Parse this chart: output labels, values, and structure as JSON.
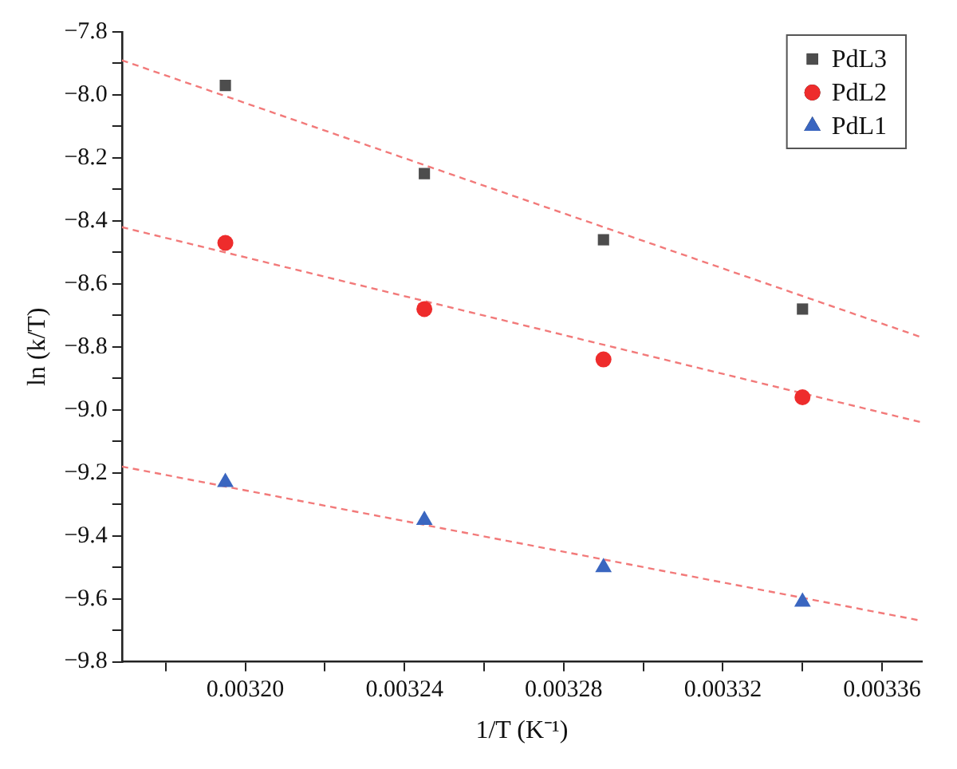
{
  "chart_data": {
    "type": "scatter",
    "xlabel": "1/T (K⁻¹)",
    "ylabel": "ln (k/T)",
    "xlim": [
      0.003169,
      0.00337
    ],
    "ylim": [
      -9.8,
      -7.8
    ],
    "xticks": [
      {
        "value": 0.00318,
        "label": null
      },
      {
        "value": 0.0032,
        "label": "0.00320"
      },
      {
        "value": 0.00322,
        "label": null
      },
      {
        "value": 0.00324,
        "label": "0.00324"
      },
      {
        "value": 0.00326,
        "label": null
      },
      {
        "value": 0.00328,
        "label": "0.00328"
      },
      {
        "value": 0.0033,
        "label": null
      },
      {
        "value": 0.00332,
        "label": "0.00332"
      },
      {
        "value": 0.00334,
        "label": null
      },
      {
        "value": 0.00336,
        "label": "0.00336"
      }
    ],
    "yticks": [
      {
        "value": -7.8,
        "label": "−7.8"
      },
      {
        "value": -7.9,
        "label": null
      },
      {
        "value": -8.0,
        "label": "−8.0"
      },
      {
        "value": -8.1,
        "label": null
      },
      {
        "value": -8.2,
        "label": "−8.2"
      },
      {
        "value": -8.3,
        "label": null
      },
      {
        "value": -8.4,
        "label": "−8.4"
      },
      {
        "value": -8.5,
        "label": null
      },
      {
        "value": -8.6,
        "label": "−8.6"
      },
      {
        "value": -8.7,
        "label": null
      },
      {
        "value": -8.8,
        "label": "−8.8"
      },
      {
        "value": -8.9,
        "label": null
      },
      {
        "value": -9.0,
        "label": "−9.0"
      },
      {
        "value": -9.1,
        "label": null
      },
      {
        "value": -9.2,
        "label": "−9.2"
      },
      {
        "value": -9.3,
        "label": null
      },
      {
        "value": -9.4,
        "label": "−9.4"
      },
      {
        "value": -9.5,
        "label": null
      },
      {
        "value": -9.6,
        "label": "−9.6"
      },
      {
        "value": -9.7,
        "label": null
      },
      {
        "value": -9.8,
        "label": "−9.8"
      }
    ],
    "grid": false,
    "legend": "top right",
    "series": [
      {
        "name": "PdL3",
        "color": "#4d4d4d",
        "marker": "square",
        "x": [
          0.003195,
          0.003245,
          0.00329,
          0.00334
        ],
        "values": [
          -7.97,
          -8.25,
          -8.46,
          -8.68
        ]
      },
      {
        "name": "PdL2",
        "color": "#ee2c2c",
        "marker": "circle",
        "x": [
          0.003195,
          0.003245,
          0.00329,
          0.00334
        ],
        "values": [
          -8.47,
          -8.68,
          -8.84,
          -8.96
        ]
      },
      {
        "name": "PdL1",
        "color": "#3a66c0",
        "marker": "triangle",
        "x": [
          0.003195,
          0.003245,
          0.00329,
          0.00334
        ],
        "values": [
          -9.23,
          -9.35,
          -9.5,
          -9.61
        ]
      },
      {
        "type": "line",
        "color": "#f27a7a",
        "line_style": "dashed",
        "marker": "none",
        "x": [
          0.003169,
          0.00337
        ],
        "values": [
          -7.89,
          -8.77
        ]
      },
      {
        "type": "line",
        "color": "#f27a7a",
        "line_style": "dashed",
        "marker": "none",
        "x": [
          0.003169,
          0.00337
        ],
        "values": [
          -8.42,
          -9.04
        ]
      },
      {
        "type": "line",
        "color": "#f27a7a",
        "line_style": "dashed",
        "marker": "none",
        "x": [
          0.003169,
          0.00337
        ],
        "values": [
          -9.18,
          -9.67
        ]
      }
    ]
  }
}
